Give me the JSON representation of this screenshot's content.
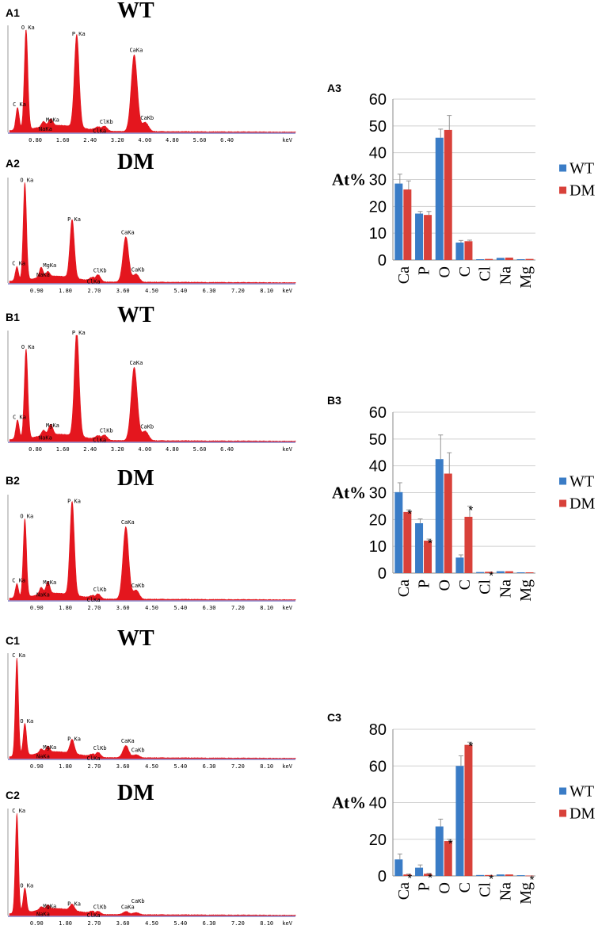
{
  "colors": {
    "spectrum": "#e4161e",
    "wt": "#3a7cc6",
    "dm": "#d8413a",
    "baseline": "#8080c8"
  },
  "spectra": [
    {
      "id": "A1",
      "panel": "A1",
      "title": "WT",
      "unit": "keV",
      "ticks": [
        "0.80",
        "1.60",
        "2.40",
        "3.20",
        "4.00",
        "4.80",
        "5.60",
        "6.40"
      ],
      "xmax": 8.4,
      "peaks": [
        {
          "label": "C  Ka",
          "e": 0.28,
          "h": 0.22
        },
        {
          "label": "O  Ka",
          "e": 0.53,
          "h": 0.98
        },
        {
          "label": "NaKa",
          "e": 1.04,
          "h": 0.05
        },
        {
          "label": "MgKa",
          "e": 1.25,
          "h": 0.07
        },
        {
          "label": "P  Ka",
          "e": 2.01,
          "h": 0.91
        },
        {
          "label": "ClKa",
          "e": 2.62,
          "h": 0.03
        },
        {
          "label": "ClKb",
          "e": 2.82,
          "h": 0.05
        },
        {
          "label": "CaKa",
          "e": 3.69,
          "h": 0.75
        },
        {
          "label": "CaKb",
          "e": 4.01,
          "h": 0.09
        }
      ]
    },
    {
      "id": "A2",
      "panel": "A2",
      "title": "DM",
      "unit": "keV",
      "ticks": [
        "0.90",
        "1.80",
        "2.70",
        "3.60",
        "4.50",
        "5.40",
        "6.30",
        "7.20",
        "8.10"
      ],
      "xmax": 9.0,
      "peaks": [
        {
          "label": "C  Ka",
          "e": 0.28,
          "h": 0.14
        },
        {
          "label": "O  Ka",
          "e": 0.53,
          "h": 0.97
        },
        {
          "label": "NaKa",
          "e": 1.04,
          "h": 0.1
        },
        {
          "label": "MgKa",
          "e": 1.25,
          "h": 0.05
        },
        {
          "label": "P  Ka",
          "e": 2.01,
          "h": 0.58
        },
        {
          "label": "ClKa",
          "e": 2.62,
          "h": 0.03
        },
        {
          "label": "ClKb",
          "e": 2.82,
          "h": 0.07
        },
        {
          "label": "CaKa",
          "e": 3.69,
          "h": 0.45
        },
        {
          "label": "CaKb",
          "e": 4.01,
          "h": 0.08
        }
      ]
    },
    {
      "id": "B1",
      "panel": "B1",
      "title": "WT",
      "unit": "keV",
      "ticks": [
        "0.80",
        "1.60",
        "2.40",
        "3.20",
        "4.00",
        "4.80",
        "5.60",
        "6.40"
      ],
      "xmax": 8.4,
      "peaks": [
        {
          "label": "C  Ka",
          "e": 0.28,
          "h": 0.18
        },
        {
          "label": "O  Ka",
          "e": 0.53,
          "h": 0.84
        },
        {
          "label": "NaKa",
          "e": 1.04,
          "h": 0.05
        },
        {
          "label": "MgKa",
          "e": 1.25,
          "h": 0.1
        },
        {
          "label": "P  Ka",
          "e": 2.01,
          "h": 0.99
        },
        {
          "label": "ClKa",
          "e": 2.62,
          "h": 0.03
        },
        {
          "label": "ClKb",
          "e": 2.82,
          "h": 0.05
        },
        {
          "label": "CaKa",
          "e": 3.69,
          "h": 0.69
        },
        {
          "label": "CaKb",
          "e": 4.01,
          "h": 0.09
        }
      ]
    },
    {
      "id": "B2",
      "panel": "B2",
      "title": "DM",
      "unit": "keV",
      "ticks": [
        "0.90",
        "1.80",
        "2.70",
        "3.60",
        "4.50",
        "5.40",
        "6.30",
        "7.20",
        "8.10"
      ],
      "xmax": 9.0,
      "peaks": [
        {
          "label": "C  Ka",
          "e": 0.28,
          "h": 0.14
        },
        {
          "label": "O  Ka",
          "e": 0.53,
          "h": 0.78
        },
        {
          "label": "NaKa",
          "e": 1.04,
          "h": 0.07
        },
        {
          "label": "MgKa",
          "e": 1.25,
          "h": 0.12
        },
        {
          "label": "P  Ka",
          "e": 2.01,
          "h": 0.93
        },
        {
          "label": "ClKa",
          "e": 2.62,
          "h": 0.02
        },
        {
          "label": "ClKb",
          "e": 2.82,
          "h": 0.05
        },
        {
          "label": "CaKa",
          "e": 3.69,
          "h": 0.72
        },
        {
          "label": "CaKb",
          "e": 4.01,
          "h": 0.09
        }
      ]
    },
    {
      "id": "C1",
      "panel": "C1",
      "title": "WT",
      "unit": "keV",
      "ticks": [
        "0.90",
        "1.80",
        "2.70",
        "3.60",
        "4.50",
        "5.40",
        "6.30",
        "7.20",
        "8.10"
      ],
      "xmax": 9.0,
      "peaks": [
        {
          "label": "C  Ka",
          "e": 0.28,
          "h": 0.98
        },
        {
          "label": "O  Ka",
          "e": 0.53,
          "h": 0.32
        },
        {
          "label": "NaKa",
          "e": 1.04,
          "h": 0.04
        },
        {
          "label": "MgKa",
          "e": 1.25,
          "h": 0.06
        },
        {
          "label": "P  Ka",
          "e": 2.01,
          "h": 0.14
        },
        {
          "label": "ClKa",
          "e": 2.62,
          "h": 0.02
        },
        {
          "label": "ClKb",
          "e": 2.82,
          "h": 0.05
        },
        {
          "label": "CaKa",
          "e": 3.69,
          "h": 0.12
        },
        {
          "label": "CaKb",
          "e": 4.01,
          "h": 0.03
        }
      ]
    },
    {
      "id": "C2",
      "panel": "C2",
      "title": "DM",
      "unit": "keV",
      "ticks": [
        "0.90",
        "1.80",
        "2.70",
        "3.60",
        "4.50",
        "5.40",
        "6.30",
        "7.20",
        "8.10"
      ],
      "xmax": 9.0,
      "peaks": [
        {
          "label": "C  Ka",
          "e": 0.28,
          "h": 0.98
        },
        {
          "label": "O  Ka",
          "e": 0.53,
          "h": 0.24
        },
        {
          "label": "NaKa",
          "e": 1.04,
          "h": 0.03
        },
        {
          "label": "MgKa",
          "e": 1.25,
          "h": 0.04
        },
        {
          "label": "P  Ka",
          "e": 2.01,
          "h": 0.06
        },
        {
          "label": "ClKa",
          "e": 2.62,
          "h": 0.02
        },
        {
          "label": "ClKb",
          "e": 2.82,
          "h": 0.03
        },
        {
          "label": "CaKa",
          "e": 3.69,
          "h": 0.03
        },
        {
          "label": "CaKb",
          "e": 4.01,
          "h": 0.02
        }
      ]
    }
  ],
  "chart_data": [
    {
      "id": "A3",
      "panel": "A3",
      "type": "bar",
      "ylabel": "At%",
      "ylim": [
        0,
        60
      ],
      "yticks": [
        "0",
        "10",
        "20",
        "30",
        "40",
        "50",
        "60"
      ],
      "categories": [
        "Ca",
        "P",
        "O",
        "C",
        "Cl",
        "Na",
        "Mg"
      ],
      "series": [
        {
          "name": "WT",
          "values": [
            28.5,
            17.3,
            45.6,
            6.5,
            0.3,
            0.8,
            0.3
          ],
          "errors": [
            3.5,
            0.8,
            3.2,
            0.8,
            0.1,
            0.1,
            0.1
          ]
        },
        {
          "name": "DM",
          "values": [
            26.3,
            16.8,
            48.5,
            7.0,
            0.4,
            0.9,
            0.4
          ],
          "errors": [
            3.2,
            1.3,
            5.4,
            0.4,
            0.1,
            0.1,
            0.1
          ]
        }
      ],
      "significant": {
        "WT": [
          false,
          false,
          false,
          false,
          false,
          false,
          false
        ],
        "DM": [
          false,
          false,
          false,
          false,
          false,
          false,
          false
        ]
      },
      "sig_mark": "*",
      "legend": [
        "WT",
        "DM"
      ]
    },
    {
      "id": "B3",
      "panel": "B3",
      "type": "bar",
      "ylabel": "At%",
      "ylim": [
        0,
        60
      ],
      "yticks": [
        "0",
        "10",
        "20",
        "30",
        "40",
        "50",
        "60"
      ],
      "categories": [
        "Ca",
        "P",
        "O",
        "C",
        "Cl",
        "Na",
        "Mg"
      ],
      "series": [
        {
          "name": "WT",
          "values": [
            30.2,
            18.6,
            42.5,
            5.8,
            0.4,
            0.7,
            0.3
          ],
          "errors": [
            3.5,
            1.6,
            9.0,
            1.0,
            0.1,
            0.1,
            0.1
          ]
        },
        {
          "name": "DM",
          "values": [
            22.8,
            12.1,
            37.1,
            21.0,
            0.5,
            0.7,
            0.3
          ],
          "errors": [
            0.8,
            0.6,
            7.8,
            4.0,
            0.1,
            0.1,
            0.1
          ]
        }
      ],
      "significant": {
        "WT": [
          false,
          false,
          false,
          false,
          false,
          false,
          false
        ],
        "DM": [
          true,
          true,
          false,
          true,
          true,
          false,
          false
        ]
      },
      "sig_mark": "*",
      "legend": [
        "WT",
        "DM"
      ]
    },
    {
      "id": "C3",
      "panel": "C3",
      "type": "bar",
      "ylabel": "At%",
      "ylim": [
        0,
        80
      ],
      "yticks": [
        "0",
        "20",
        "40",
        "60",
        "80"
      ],
      "categories": [
        "Ca",
        "P",
        "O",
        "C",
        "Cl",
        "Na",
        "Mg"
      ],
      "series": [
        {
          "name": "WT",
          "values": [
            9.0,
            4.5,
            27.0,
            60.0,
            0.5,
            0.8,
            0.4
          ],
          "errors": [
            3.0,
            1.5,
            4.0,
            5.5,
            0.1,
            0.1,
            0.1
          ]
        },
        {
          "name": "DM",
          "values": [
            0.8,
            1.2,
            19.0,
            71.5,
            0.5,
            0.8,
            0.2
          ],
          "errors": [
            0.2,
            0.2,
            1.0,
            1.5,
            0.1,
            0.1,
            0.1
          ]
        }
      ],
      "significant": {
        "WT": [
          false,
          false,
          false,
          false,
          false,
          false,
          false
        ],
        "DM": [
          true,
          true,
          true,
          true,
          true,
          false,
          true
        ]
      },
      "sig_mark": "*",
      "legend": [
        "WT",
        "DM"
      ]
    }
  ]
}
